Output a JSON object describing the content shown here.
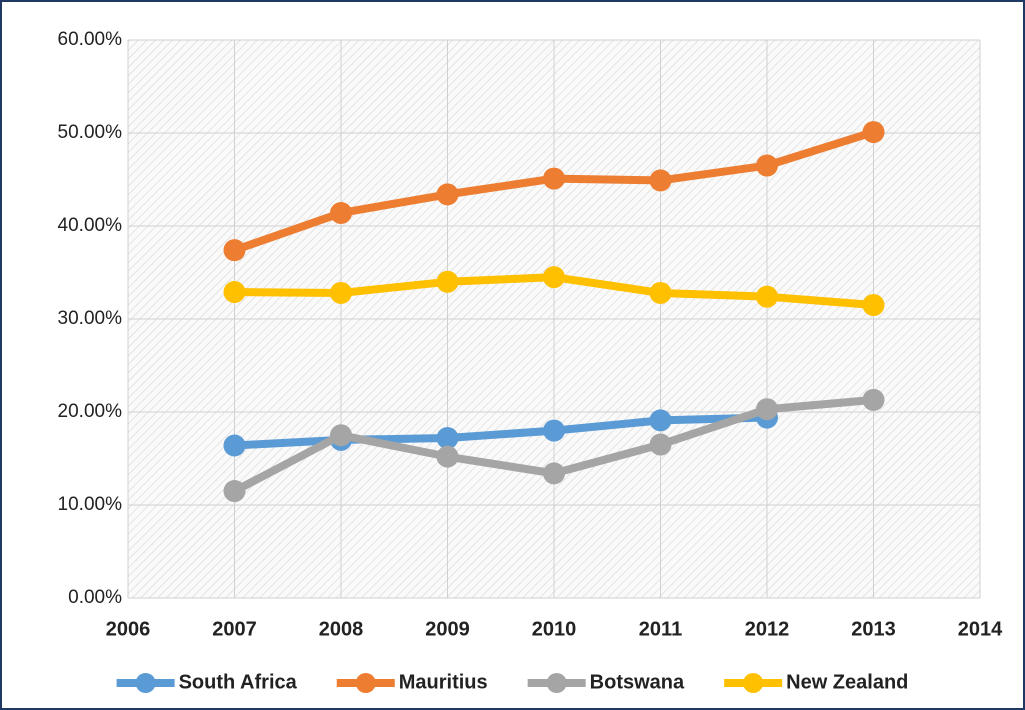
{
  "chart_data": {
    "type": "line",
    "x": [
      2007,
      2008,
      2009,
      2010,
      2011,
      2012,
      2013
    ],
    "series": [
      {
        "name": "South Africa",
        "color": "#5b9bd5",
        "values": [
          16.4,
          17.0,
          17.2,
          18.0,
          19.1,
          19.4,
          null
        ]
      },
      {
        "name": "Mauritius",
        "color": "#ed7d31",
        "values": [
          37.4,
          41.4,
          43.4,
          45.1,
          44.9,
          46.5,
          50.1
        ]
      },
      {
        "name": "Botswana",
        "color": "#a5a5a5",
        "values": [
          11.5,
          17.5,
          15.2,
          13.4,
          16.5,
          20.3,
          21.3
        ]
      },
      {
        "name": "New Zealand",
        "color": "#ffc000",
        "values": [
          32.9,
          32.8,
          34.0,
          34.5,
          32.8,
          32.4,
          31.5
        ]
      }
    ],
    "xlim": [
      2006,
      2014
    ],
    "xticks": [
      2006,
      2007,
      2008,
      2009,
      2010,
      2011,
      2012,
      2013,
      2014
    ],
    "ylim": [
      0,
      60
    ],
    "yticks": [
      {
        "value": 0,
        "label": "0.00%"
      },
      {
        "value": 10,
        "label": "10.00%"
      },
      {
        "value": 20,
        "label": "20.00%"
      },
      {
        "value": 30,
        "label": "30.00%"
      },
      {
        "value": 40,
        "label": "40.00%"
      },
      {
        "value": 50,
        "label": "50.00%"
      },
      {
        "value": 60,
        "label": "60.00%"
      }
    ],
    "grid": true,
    "legend": "bottom"
  }
}
